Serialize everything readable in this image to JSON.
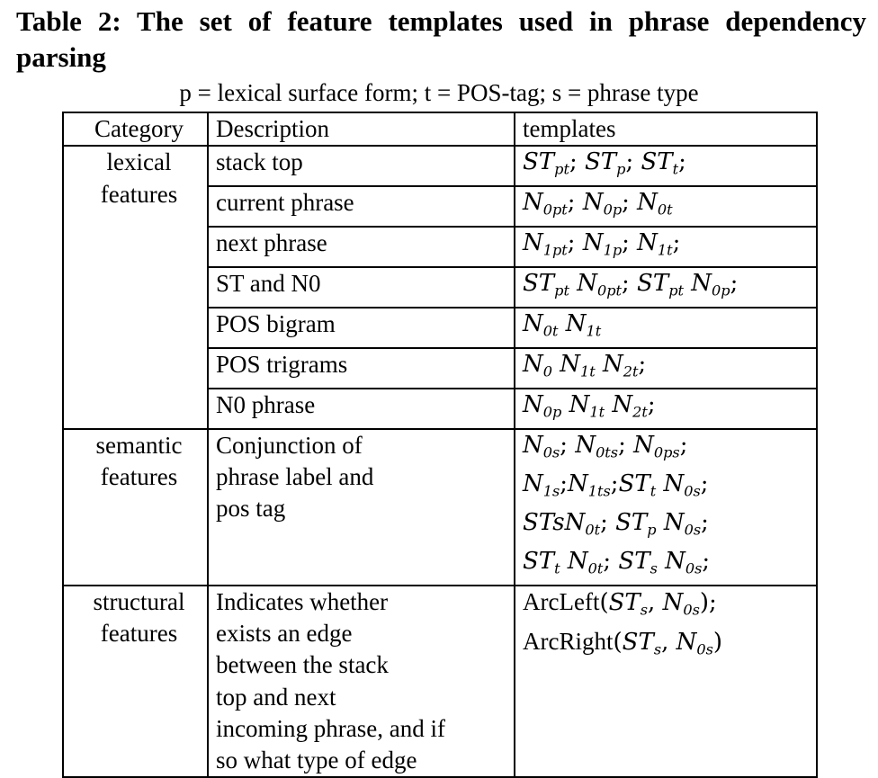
{
  "title": "Table 2: The set of feature templates used in phrase dependency parsing",
  "subtitle": "p = lexical surface form; t = POS-tag; s = phrase type",
  "columns": [
    "Category",
    "Description",
    "templates"
  ],
  "groups": [
    {
      "category": [
        "lexical",
        "features"
      ],
      "rows": [
        {
          "description": [
            "stack top"
          ],
          "templates": [
            "ST_pt; ST_p; ST_t;"
          ]
        },
        {
          "description": [
            "current phrase"
          ],
          "templates": [
            "N_0pt; N_0p; N_0t"
          ]
        },
        {
          "description": [
            "next phrase"
          ],
          "templates": [
            "N_1pt; N_1p; N_1t;"
          ]
        },
        {
          "description": [
            "ST and N0"
          ],
          "templates": [
            "ST_pt N_0pt; ST_pt N_0p;"
          ]
        },
        {
          "description": [
            "POS bigram"
          ],
          "templates": [
            "N_0t N_1t"
          ]
        },
        {
          "description": [
            "POS trigrams"
          ],
          "templates": [
            "N_0 N_1t N_2t;"
          ]
        },
        {
          "description": [
            "N0 phrase"
          ],
          "templates": [
            "N_0p N_1t N_2t;"
          ]
        }
      ]
    },
    {
      "category": [
        "semantic",
        "features"
      ],
      "rows": [
        {
          "description": [
            "Conjunction of",
            "phrase label and",
            "pos tag"
          ],
          "templates": [
            "N_0s; N_0ts; N_0ps;",
            "N_1s;N_1ts;ST_t N_0s;",
            "STsN_0t; ST_p N_0s;",
            "ST_t N_0t; ST_s N_0s;"
          ]
        }
      ]
    },
    {
      "category": [
        "structural",
        "features"
      ],
      "rows": [
        {
          "description": [
            "Indicates whether",
            "exists an edge",
            "between the stack",
            "top and next",
            "incoming phrase, and if",
            "so what type of edge"
          ],
          "templates": [
            "ArcLeft(ST_s, N_0s);",
            "ArcRight(ST_s, N_0s)"
          ]
        }
      ]
    }
  ]
}
